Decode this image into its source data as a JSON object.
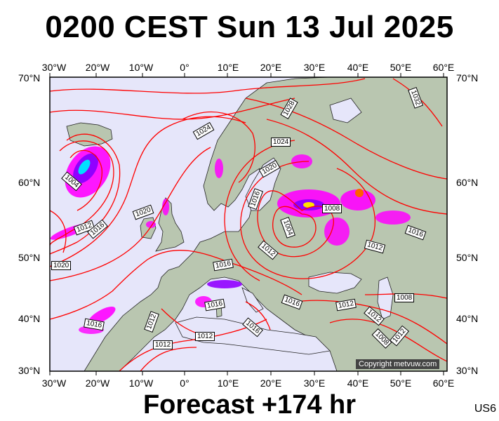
{
  "title": "0200 CEST Sun 13 Jul 2025",
  "footer": "Forecast +174 hr",
  "model_code": "US6",
  "copyright": "Copyright metvuw.com",
  "axes": {
    "lon_labels": [
      "30°W",
      "20°W",
      "10°W",
      "0°",
      "10°E",
      "20°E",
      "30°E",
      "40°E",
      "50°E",
      "60°E"
    ],
    "lat_labels_left": [
      "70°N",
      "60°N",
      "50°N",
      "40°N",
      "30°N"
    ],
    "lat_labels_right": [
      "70°N",
      "60°N",
      "50°N",
      "40°N",
      "30°N"
    ]
  },
  "isobar_labels": [
    {
      "text": "1028"
    },
    {
      "text": "1032"
    },
    {
      "text": "1024"
    },
    {
      "text": "1024"
    },
    {
      "text": "1020"
    },
    {
      "text": "1016"
    },
    {
      "text": "1008"
    },
    {
      "text": "1004"
    },
    {
      "text": "1004"
    },
    {
      "text": "1012"
    },
    {
      "text": "1016"
    },
    {
      "text": "1020"
    },
    {
      "text": "1012"
    },
    {
      "text": "1016"
    },
    {
      "text": "1016"
    },
    {
      "text": "1012"
    },
    {
      "text": "1016"
    },
    {
      "text": "1020"
    },
    {
      "text": "1016"
    },
    {
      "text": "1016"
    },
    {
      "text": "1012"
    },
    {
      "text": "1008"
    },
    {
      "text": "1012"
    },
    {
      "text": "1012"
    },
    {
      "text": "1008"
    },
    {
      "text": "1012"
    },
    {
      "text": "1012"
    },
    {
      "text": "1012"
    },
    {
      "text": "1016"
    }
  ],
  "colors": {
    "sea": "#e6e6fa",
    "land": "#b9c6b0",
    "isobar": "#ff0000",
    "precip_light": "#ff00ff",
    "precip_mid": "#c000ff",
    "precip_heavy": "#4040ff",
    "precip_max": "#00e0ff"
  }
}
